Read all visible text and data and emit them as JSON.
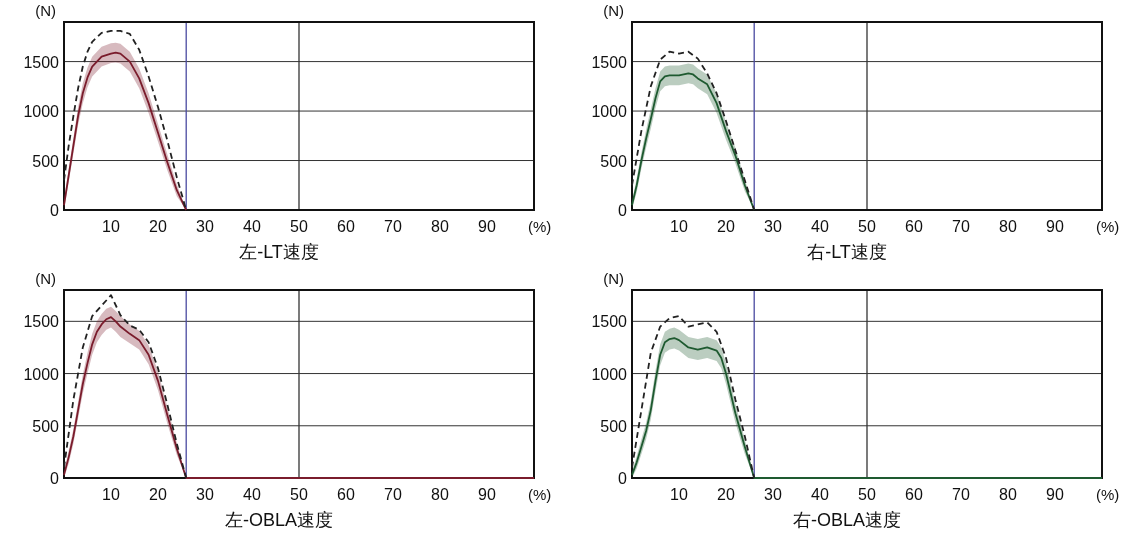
{
  "chart_data": [
    {
      "type": "line",
      "title": "左-LT速度",
      "xlabel": "(%)",
      "ylabel": "(N)",
      "xlim": [
        0,
        100
      ],
      "xticks": [
        10,
        20,
        30,
        40,
        50,
        60,
        70,
        80,
        90
      ],
      "ylim": [
        0,
        1900
      ],
      "yticks": [
        0,
        500,
        1000,
        1500
      ],
      "grid": "y",
      "ref_lines": [
        {
          "axis": "x",
          "value": 26,
          "color": "#4a4aa0"
        },
        {
          "axis": "x",
          "value": 50,
          "color": "#333333"
        }
      ],
      "series": [
        {
          "color": "#7a1c2c",
          "x": [
            0,
            1,
            2,
            3,
            4,
            5,
            6,
            8,
            10,
            11,
            12,
            14,
            16,
            18,
            20,
            22,
            24,
            26
          ],
          "values": [
            50,
            350,
            650,
            950,
            1180,
            1340,
            1450,
            1550,
            1580,
            1590,
            1580,
            1500,
            1330,
            1080,
            780,
            480,
            200,
            0
          ],
          "lower": [
            0,
            280,
            570,
            860,
            1080,
            1240,
            1350,
            1450,
            1485,
            1490,
            1480,
            1400,
            1230,
            980,
            690,
            400,
            140,
            0
          ],
          "upper": [
            100,
            420,
            730,
            1040,
            1280,
            1440,
            1550,
            1650,
            1685,
            1690,
            1680,
            1600,
            1430,
            1180,
            870,
            560,
            260,
            0
          ]
        },
        {
          "color": "#222222",
          "line_style": "dashed",
          "x": [
            0,
            1,
            2,
            3,
            4,
            5,
            6,
            8,
            10,
            12,
            14,
            16,
            18,
            20,
            22,
            24,
            26
          ],
          "values": [
            300,
            650,
            950,
            1230,
            1450,
            1600,
            1700,
            1790,
            1810,
            1810,
            1780,
            1620,
            1350,
            1040,
            700,
            330,
            0
          ]
        }
      ]
    },
    {
      "type": "line",
      "title": "右-LT速度",
      "xlabel": "(%)",
      "ylabel": "(N)",
      "xlim": [
        0,
        100
      ],
      "xticks": [
        10,
        20,
        30,
        40,
        50,
        60,
        70,
        80,
        90
      ],
      "ylim": [
        0,
        1900
      ],
      "yticks": [
        0,
        500,
        1000,
        1500
      ],
      "grid": "y",
      "ref_lines": [
        {
          "axis": "x",
          "value": 26,
          "color": "#4a4aa0"
        },
        {
          "axis": "x",
          "value": 50,
          "color": "#333333"
        }
      ],
      "series": [
        {
          "color": "#1e5a30",
          "x": [
            0,
            1,
            2,
            3,
            4,
            5,
            6,
            7,
            8,
            10,
            12,
            13,
            14,
            16,
            18,
            20,
            22,
            24,
            26
          ],
          "values": [
            50,
            250,
            500,
            720,
            920,
            1130,
            1300,
            1350,
            1360,
            1360,
            1380,
            1370,
            1330,
            1270,
            1080,
            800,
            550,
            250,
            0
          ],
          "lower": [
            10,
            180,
            420,
            630,
            820,
            1030,
            1200,
            1250,
            1260,
            1260,
            1280,
            1270,
            1230,
            1170,
            980,
            710,
            470,
            190,
            0
          ],
          "upper": [
            90,
            320,
            580,
            810,
            1020,
            1230,
            1400,
            1450,
            1460,
            1460,
            1480,
            1470,
            1430,
            1370,
            1180,
            890,
            630,
            310,
            0
          ]
        },
        {
          "color": "#222222",
          "line_style": "dashed",
          "x": [
            0,
            2,
            4,
            6,
            8,
            10,
            12,
            14,
            16,
            18,
            20,
            22,
            24,
            26
          ],
          "values": [
            250,
            800,
            1250,
            1520,
            1600,
            1580,
            1600,
            1530,
            1380,
            1180,
            900,
            600,
            300,
            0
          ]
        }
      ]
    },
    {
      "type": "line",
      "title": "左-OBLA速度",
      "xlabel": "(%)",
      "ylabel": "(N)",
      "xlim": [
        0,
        100
      ],
      "xticks": [
        10,
        20,
        30,
        40,
        50,
        60,
        70,
        80,
        90
      ],
      "ylim": [
        0,
        1800
      ],
      "yticks": [
        0,
        500,
        1000,
        1500
      ],
      "grid": "y",
      "ref_lines": [
        {
          "axis": "x",
          "value": 26,
          "color": "#4a4aa0"
        },
        {
          "axis": "x",
          "value": 50,
          "color": "#333333"
        }
      ],
      "series": [
        {
          "color": "#7a1c2c",
          "x": [
            0,
            1,
            2,
            3,
            4,
            5,
            6,
            7,
            8,
            9,
            10,
            11,
            12,
            14,
            16,
            18,
            20,
            22,
            24,
            26,
            100
          ],
          "values": [
            30,
            200,
            400,
            650,
            900,
            1100,
            1280,
            1400,
            1470,
            1520,
            1540,
            1500,
            1450,
            1380,
            1320,
            1180,
            930,
            600,
            280,
            0,
            0
          ],
          "lower": [
            0,
            140,
            330,
            570,
            810,
            1000,
            1180,
            1300,
            1370,
            1420,
            1440,
            1400,
            1350,
            1290,
            1230,
            1090,
            840,
            520,
            220,
            0,
            0
          ],
          "upper": [
            60,
            260,
            470,
            730,
            990,
            1200,
            1380,
            1500,
            1570,
            1620,
            1640,
            1600,
            1550,
            1470,
            1410,
            1270,
            1020,
            680,
            340,
            0,
            0
          ]
        },
        {
          "color": "#222222",
          "line_style": "dashed",
          "x": [
            0,
            2,
            4,
            6,
            8,
            10,
            12,
            14,
            16,
            18,
            20,
            22,
            24,
            26
          ],
          "values": [
            100,
            750,
            1250,
            1550,
            1650,
            1750,
            1560,
            1460,
            1420,
            1300,
            1050,
            700,
            330,
            0
          ]
        }
      ]
    },
    {
      "type": "line",
      "title": "右-OBLA速度",
      "xlabel": "(%)",
      "ylabel": "(N)",
      "xlim": [
        0,
        100
      ],
      "xticks": [
        10,
        20,
        30,
        40,
        50,
        60,
        70,
        80,
        90
      ],
      "ylim": [
        0,
        1800
      ],
      "yticks": [
        0,
        500,
        1000,
        1500
      ],
      "grid": "y",
      "ref_lines": [
        {
          "axis": "x",
          "value": 26,
          "color": "#4a4aa0"
        },
        {
          "axis": "x",
          "value": 50,
          "color": "#333333"
        }
      ],
      "series": [
        {
          "color": "#1e5a30",
          "x": [
            0,
            1,
            2,
            3,
            4,
            5,
            6,
            7,
            8,
            9,
            10,
            12,
            14,
            16,
            18,
            19,
            20,
            22,
            24,
            26,
            100
          ],
          "values": [
            30,
            150,
            300,
            450,
            650,
            930,
            1180,
            1300,
            1330,
            1340,
            1320,
            1250,
            1230,
            1250,
            1220,
            1150,
            1000,
            620,
            300,
            0,
            0
          ],
          "lower": [
            0,
            90,
            230,
            370,
            560,
            830,
            1080,
            1200,
            1230,
            1240,
            1220,
            1150,
            1130,
            1150,
            1120,
            1050,
            900,
            530,
            230,
            0,
            0
          ],
          "upper": [
            60,
            210,
            370,
            530,
            740,
            1030,
            1280,
            1400,
            1430,
            1440,
            1420,
            1350,
            1330,
            1350,
            1320,
            1250,
            1100,
            710,
            370,
            0,
            0
          ]
        },
        {
          "color": "#222222",
          "line_style": "dashed",
          "x": [
            0,
            2,
            4,
            6,
            8,
            10,
            12,
            14,
            16,
            18,
            20,
            22,
            24,
            26
          ],
          "values": [
            100,
            650,
            1200,
            1450,
            1530,
            1550,
            1450,
            1470,
            1490,
            1400,
            1150,
            750,
            400,
            0
          ]
        }
      ]
    }
  ]
}
